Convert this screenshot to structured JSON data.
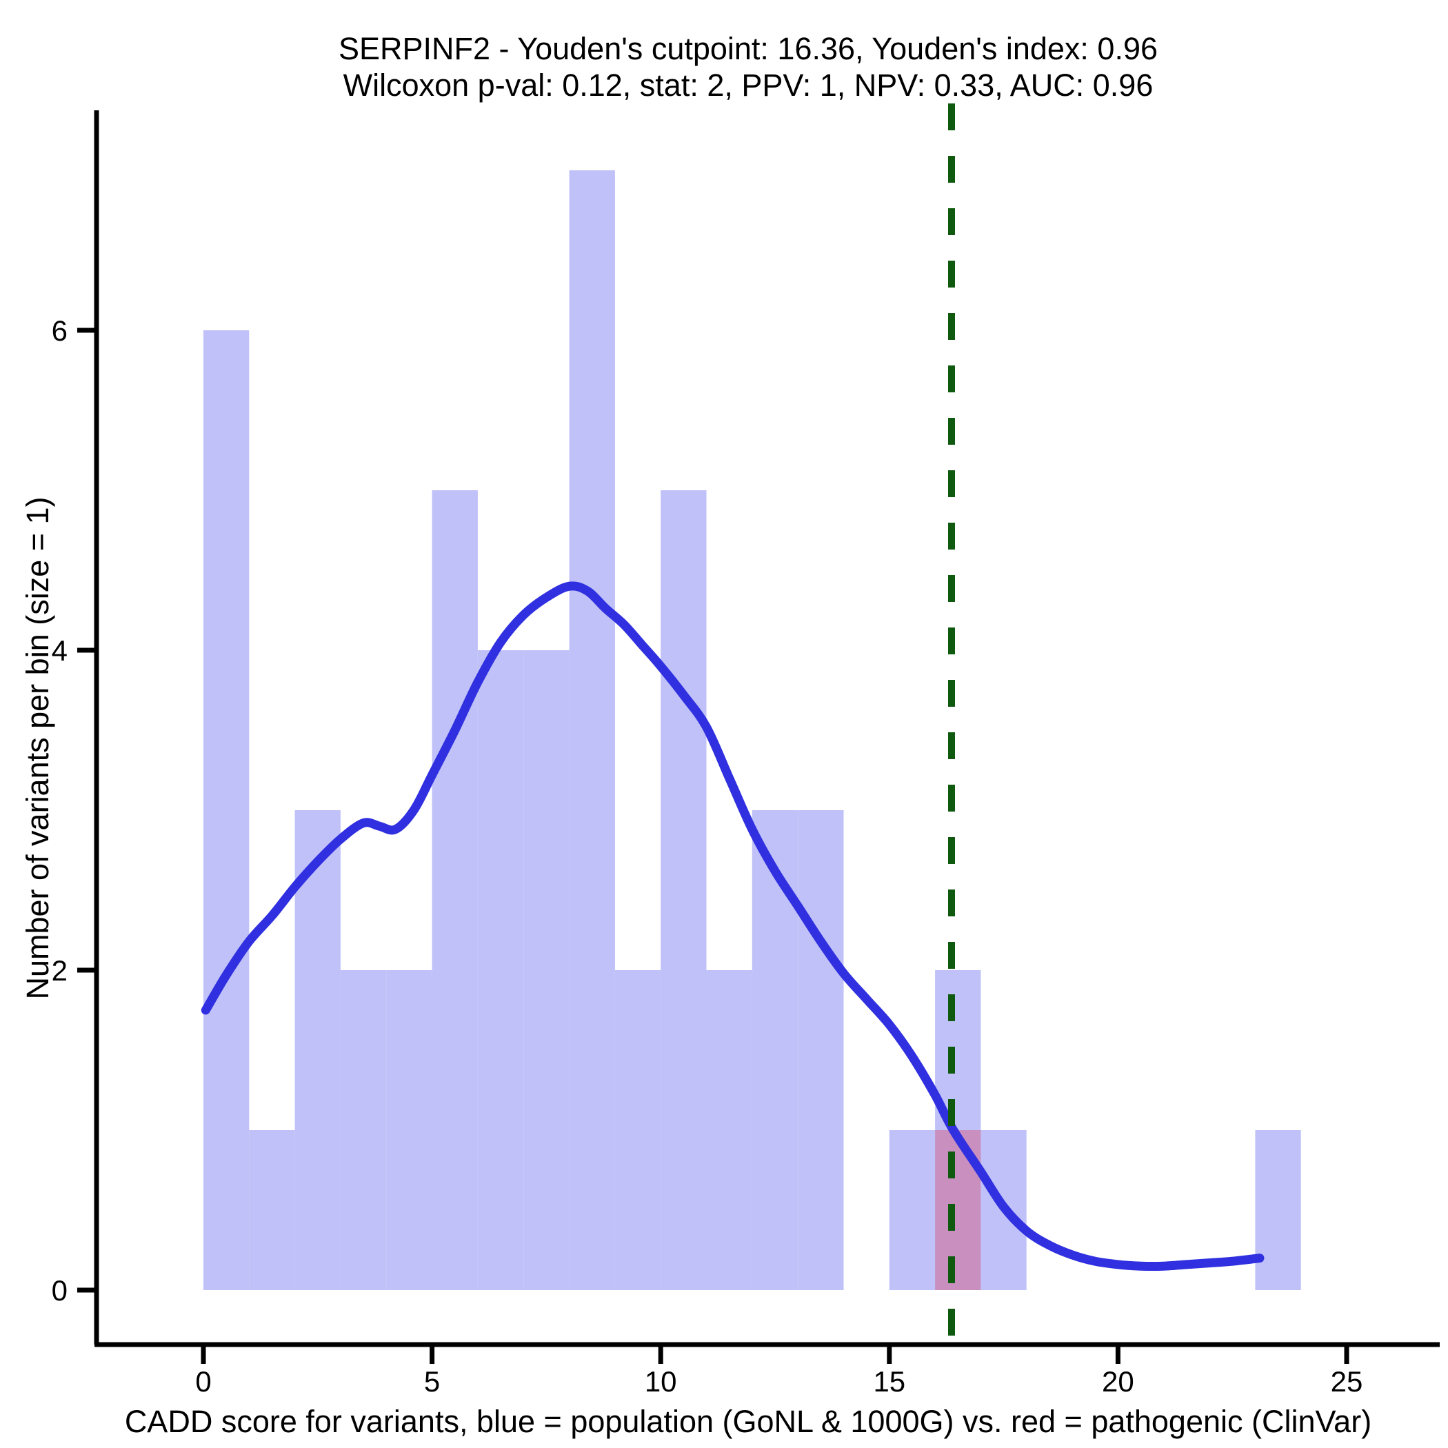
{
  "title": {
    "line1": "SERPINF2 - Youden's cutpoint: 16.36, Youden's index: 0.96",
    "line2": "Wilcoxon p-val: 0.12, stat: 2, PPV: 1, NPV: 0.33, AUC: 0.96"
  },
  "axes": {
    "x_label": "CADD score for variants, blue = population (GoNL & 1000G) vs. red = pathogenic (ClinVar)",
    "y_label": "Number of variants per bin (size = 1)"
  },
  "colors": {
    "population_bar": "#bfc1f8",
    "pathogenic_overlap_bar": "#c990bf",
    "density_curve": "#3030e0",
    "cutpoint_line": "#105a10",
    "axis": "#000000"
  },
  "chart_data": {
    "type": "bar",
    "subtype": "histogram_with_density_overlay",
    "title": "SERPINF2 - Youden's cutpoint: 16.36, Youden's index: 0.96",
    "subtitle": "Wilcoxon p-val: 0.12, stat: 2, PPV: 1, NPV: 0.33, AUC: 0.96",
    "xlabel": "CADD score for variants, blue = population (GoNL & 1000G) vs. red = pathogenic (ClinVar)",
    "ylabel": "Number of variants per bin (size = 1)",
    "x_ticks": [
      0,
      5,
      10,
      15,
      20,
      25
    ],
    "y_ticks": [
      0,
      2,
      4,
      6
    ],
    "xlim": [
      -2.3,
      27.0
    ],
    "ylim": [
      -0.34,
      7.45
    ],
    "grid": "off",
    "legend": "none",
    "bin_width": 1,
    "series": [
      {
        "name": "population (GoNL & 1000G)",
        "role": "histogram",
        "color": "#bfc1f8",
        "bins": [
          [
            0,
            6
          ],
          [
            1,
            1
          ],
          [
            2,
            3
          ],
          [
            3,
            2
          ],
          [
            4,
            2
          ],
          [
            5,
            5
          ],
          [
            6,
            4
          ],
          [
            7,
            4
          ],
          [
            8,
            7
          ],
          [
            9,
            2
          ],
          [
            10,
            5
          ],
          [
            11,
            2
          ],
          [
            12,
            3
          ],
          [
            13,
            3
          ],
          [
            14,
            0
          ],
          [
            15,
            1
          ],
          [
            16,
            2
          ],
          [
            17,
            1
          ],
          [
            18,
            0
          ],
          [
            19,
            0
          ],
          [
            20,
            0
          ],
          [
            21,
            0
          ],
          [
            22,
            0
          ],
          [
            23,
            1
          ]
        ]
      },
      {
        "name": "pathogenic (ClinVar)",
        "role": "histogram",
        "color": "#c990bf",
        "note": "rendered as overlap blend on top of population bar",
        "bins": [
          [
            16,
            1
          ]
        ]
      }
    ],
    "density_curve": {
      "name": "population density estimate",
      "color": "#3030e0",
      "points": [
        [
          0.05,
          1.75
        ],
        [
          0.5,
          1.97
        ],
        [
          1,
          2.18
        ],
        [
          1.5,
          2.34
        ],
        [
          2,
          2.52
        ],
        [
          2.5,
          2.68
        ],
        [
          3,
          2.82
        ],
        [
          3.5,
          2.92
        ],
        [
          3.85,
          2.9
        ],
        [
          4.2,
          2.88
        ],
        [
          4.6,
          3.0
        ],
        [
          5,
          3.22
        ],
        [
          5.5,
          3.5
        ],
        [
          6,
          3.8
        ],
        [
          6.5,
          4.05
        ],
        [
          7,
          4.22
        ],
        [
          7.5,
          4.33
        ],
        [
          8,
          4.4
        ],
        [
          8.4,
          4.37
        ],
        [
          8.8,
          4.26
        ],
        [
          9.2,
          4.16
        ],
        [
          9.6,
          4.03
        ],
        [
          10,
          3.9
        ],
        [
          10.5,
          3.72
        ],
        [
          11,
          3.52
        ],
        [
          11.5,
          3.2
        ],
        [
          12,
          2.88
        ],
        [
          12.5,
          2.62
        ],
        [
          13,
          2.4
        ],
        [
          13.5,
          2.18
        ],
        [
          14,
          1.98
        ],
        [
          14.5,
          1.82
        ],
        [
          15,
          1.66
        ],
        [
          15.5,
          1.46
        ],
        [
          16,
          1.22
        ],
        [
          16.4,
          1.0
        ],
        [
          17,
          0.74
        ],
        [
          17.5,
          0.52
        ],
        [
          18,
          0.37
        ],
        [
          18.5,
          0.28
        ],
        [
          19,
          0.22
        ],
        [
          19.5,
          0.18
        ],
        [
          20,
          0.16
        ],
        [
          20.5,
          0.15
        ],
        [
          21,
          0.15
        ],
        [
          21.5,
          0.16
        ],
        [
          22,
          0.17
        ],
        [
          22.5,
          0.18
        ],
        [
          23.1,
          0.2
        ]
      ]
    },
    "cutpoint_line": {
      "x": 16.36,
      "color": "#105a10",
      "style": "dashed"
    },
    "stats": {
      "gene": "SERPINF2",
      "youden_cutpoint": 16.36,
      "youden_index": 0.96,
      "wilcoxon_p_val": 0.12,
      "stat": 2,
      "ppv": 1,
      "npv": 0.33,
      "auc": 0.96
    }
  }
}
